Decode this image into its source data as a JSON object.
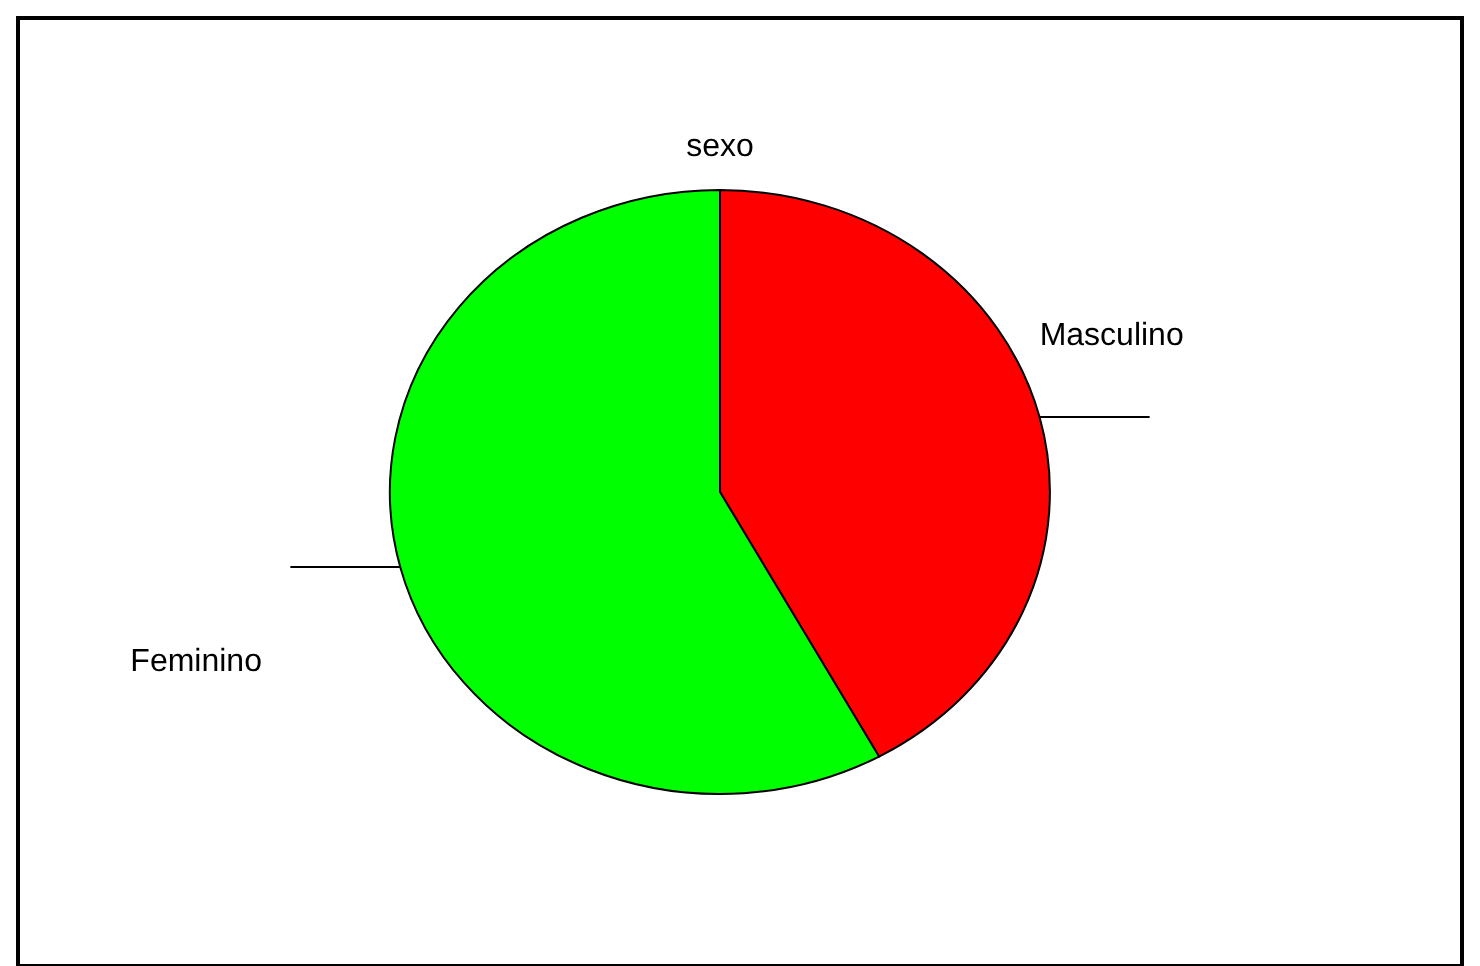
{
  "chart_data": {
    "type": "pie",
    "title": "sexo",
    "categories": [
      "Masculino",
      "Feminino"
    ],
    "values": [
      42,
      58
    ],
    "colors": [
      "#ff0000",
      "#00ff00"
    ]
  }
}
